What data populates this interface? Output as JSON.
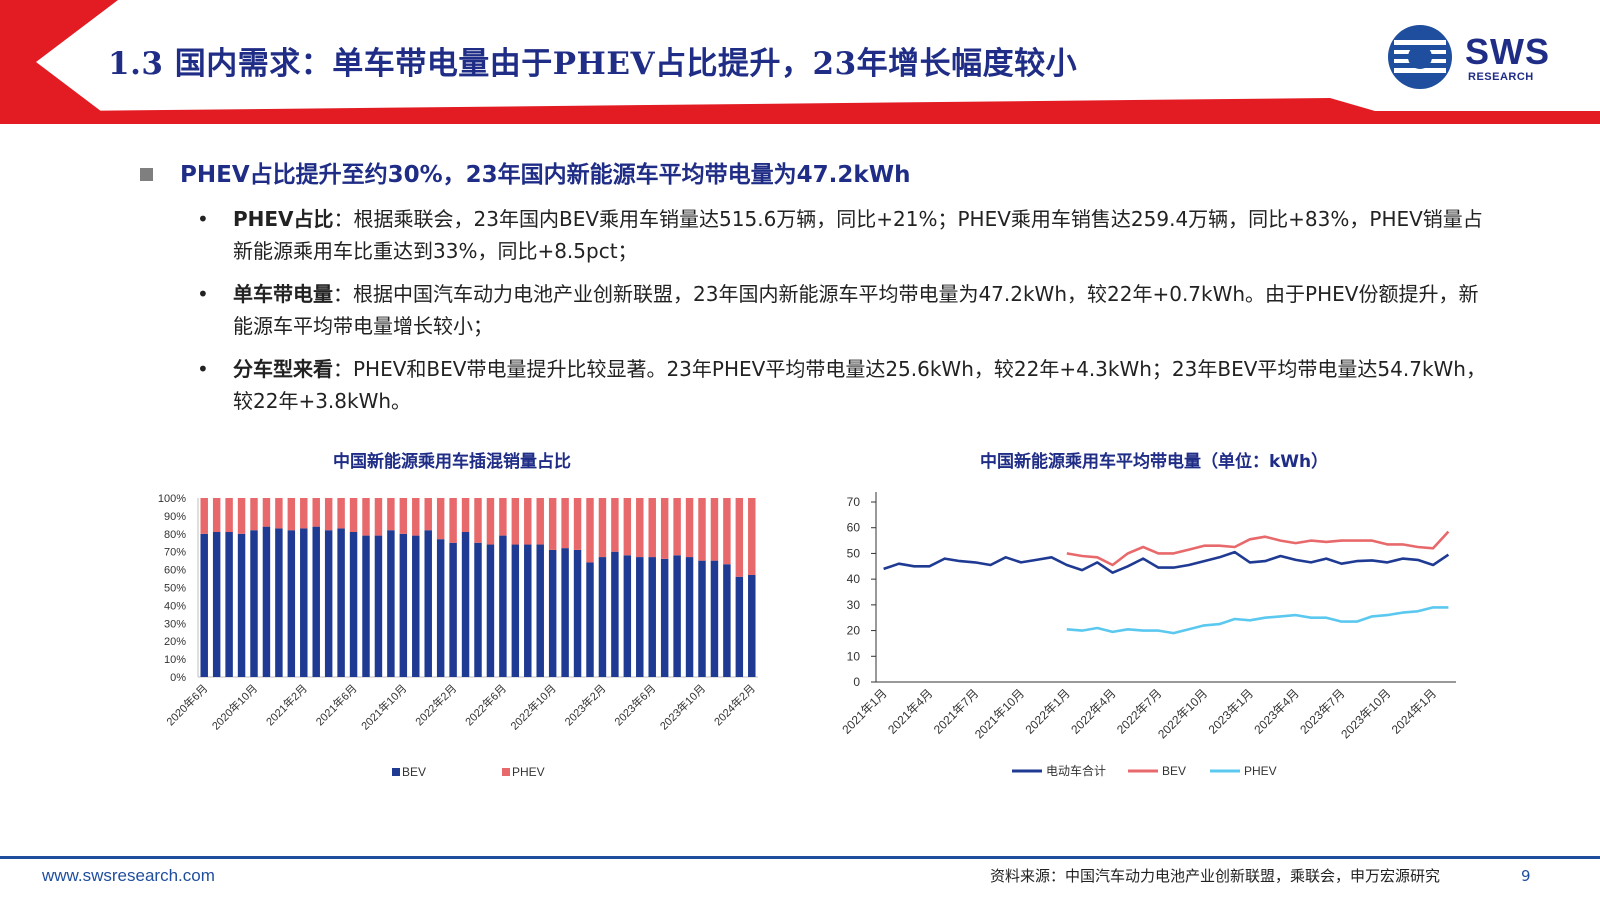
{
  "header": {
    "title": "1.3 国内需求：单车带电量由于PHEV占比提升，23年增长幅度较小",
    "logo_text": "SWS",
    "logo_sub": "RESEARCH"
  },
  "colors": {
    "navy": "#1f2d86",
    "red": "#e31b23",
    "bev_bar": "#1f3a93",
    "phev_bar": "#e8696b",
    "total_line": "#1f3a93",
    "bev_line": "#e8696b",
    "phev_line": "#5bc8f0"
  },
  "headline": "PHEV占比提升至约30%，23年国内新能源车平均带电量为47.2kWh",
  "bullets": [
    {
      "label": "PHEV占比",
      "text": "：根据乘联会，23年国内BEV乘用车销量达515.6万辆，同比+21%；PHEV乘用车销售达259.4万辆，同比+83%，PHEV销量占新能源乘用车比重达到33%，同比+8.5pct；"
    },
    {
      "label": "单车带电量",
      "text": "：根据中国汽车动力电池产业创新联盟，23年国内新能源车平均带电量为47.2kWh，较22年+0.7kWh。由于PHEV份额提升，新能源车平均带电量增长较小；"
    },
    {
      "label": "分车型来看",
      "text": "：PHEV和BEV带电量提升比较显著。23年PHEV平均带电量达25.6kWh，较22年+4.3kWh；23年BEV平均带电量达54.7kWh，较22年+3.8kWh。"
    }
  ],
  "footer": {
    "url": "www.swsresearch.com",
    "source": "资料来源：中国汽车动力电池产业创新联盟，乘联会，申万宏源研究",
    "page": "9"
  },
  "chart_data": [
    {
      "type": "bar",
      "stacked": true,
      "title": "中国新能源乘用车插混销量占比",
      "x_tick_labels": [
        "2020年6月",
        "2020年10月",
        "2021年2月",
        "2021年6月",
        "2021年10月",
        "2022年2月",
        "2022年6月",
        "2022年10月",
        "2023年2月",
        "2023年6月",
        "2023年10月",
        "2024年2月"
      ],
      "y_tick_labels": [
        "0%",
        "10%",
        "20%",
        "30%",
        "40%",
        "50%",
        "60%",
        "70%",
        "80%",
        "90%",
        "100%"
      ],
      "ylim": [
        0,
        100
      ],
      "categories": [
        "2020-06",
        "2020-07",
        "2020-08",
        "2020-09",
        "2020-10",
        "2020-11",
        "2020-12",
        "2021-01",
        "2021-02",
        "2021-03",
        "2021-04",
        "2021-05",
        "2021-06",
        "2021-07",
        "2021-08",
        "2021-09",
        "2021-10",
        "2021-11",
        "2021-12",
        "2022-01",
        "2022-02",
        "2022-03",
        "2022-04",
        "2022-05",
        "2022-06",
        "2022-07",
        "2022-08",
        "2022-09",
        "2022-10",
        "2022-11",
        "2022-12",
        "2023-01",
        "2023-02",
        "2023-03",
        "2023-04",
        "2023-05",
        "2023-06",
        "2023-07",
        "2023-08",
        "2023-09",
        "2023-10",
        "2023-11",
        "2023-12",
        "2024-01",
        "2024-02"
      ],
      "series": [
        {
          "name": "BEV",
          "values": [
            80,
            81,
            81,
            80,
            82,
            84,
            83,
            82,
            83,
            84,
            82,
            83,
            81,
            79,
            79,
            82,
            80,
            79,
            82,
            77,
            75,
            81,
            75,
            74,
            79,
            74,
            74,
            74,
            71,
            72,
            71,
            64,
            67,
            70,
            68,
            67,
            67,
            66,
            68,
            67,
            65,
            65,
            63,
            56,
            57
          ]
        },
        {
          "name": "PHEV",
          "values": [
            20,
            19,
            19,
            20,
            18,
            16,
            17,
            18,
            17,
            16,
            18,
            17,
            19,
            21,
            21,
            18,
            20,
            21,
            18,
            23,
            25,
            19,
            25,
            26,
            21,
            26,
            26,
            26,
            29,
            28,
            29,
            36,
            33,
            30,
            32,
            33,
            33,
            34,
            32,
            33,
            35,
            35,
            37,
            44,
            43
          ]
        }
      ],
      "legend": "bottom"
    },
    {
      "type": "line",
      "title": "中国新能源乘用车平均带电量（单位：kWh）",
      "x_tick_labels": [
        "2021年1月",
        "2021年4月",
        "2021年7月",
        "2021年10月",
        "2022年1月",
        "2022年4月",
        "2022年7月",
        "2022年10月",
        "2023年1月",
        "2023年4月",
        "2023年7月",
        "2023年10月",
        "2024年1月"
      ],
      "y_tick_labels": [
        "0",
        "10",
        "20",
        "30",
        "40",
        "50",
        "60",
        "70"
      ],
      "ylim": [
        0,
        70
      ],
      "x": [
        "2021-01",
        "2021-02",
        "2021-03",
        "2021-04",
        "2021-05",
        "2021-06",
        "2021-07",
        "2021-08",
        "2021-09",
        "2021-10",
        "2021-11",
        "2021-12",
        "2022-01",
        "2022-02",
        "2022-03",
        "2022-04",
        "2022-05",
        "2022-06",
        "2022-07",
        "2022-08",
        "2022-09",
        "2022-10",
        "2022-11",
        "2022-12",
        "2023-01",
        "2023-02",
        "2023-03",
        "2023-04",
        "2023-05",
        "2023-06",
        "2023-07",
        "2023-08",
        "2023-09",
        "2023-10",
        "2023-11",
        "2023-12",
        "2024-01",
        "2024-02"
      ],
      "series": [
        {
          "name": "电动车合计",
          "values": [
            44,
            46,
            45,
            45,
            48,
            47,
            46.5,
            45.5,
            48.5,
            46.5,
            47.5,
            48.5,
            45.5,
            43.5,
            46.5,
            42.5,
            45,
            48,
            44.5,
            44.5,
            45.5,
            47,
            48.5,
            50.5,
            46.5,
            47,
            49,
            47.5,
            46.5,
            48,
            46,
            47,
            47.3,
            46.5,
            48,
            47.5,
            45.5,
            49.5
          ]
        },
        {
          "name": "BEV",
          "values": [
            null,
            null,
            null,
            null,
            null,
            null,
            null,
            null,
            null,
            null,
            null,
            null,
            50,
            49,
            48.5,
            45.5,
            50,
            52.5,
            50,
            50,
            51.5,
            53,
            53,
            52.5,
            55.5,
            56.5,
            55,
            54,
            55,
            54.5,
            55,
            55,
            55,
            53.5,
            53.5,
            52.5,
            52,
            58.5
          ]
        },
        {
          "name": "PHEV",
          "values": [
            null,
            null,
            null,
            null,
            null,
            null,
            null,
            null,
            null,
            null,
            null,
            null,
            20.5,
            20,
            21,
            19.5,
            20.5,
            20,
            20,
            19,
            20.5,
            22,
            22.5,
            24.5,
            24,
            25,
            25.5,
            26,
            25,
            25,
            23.5,
            23.5,
            25.5,
            26,
            27,
            27.5,
            29,
            29
          ]
        }
      ],
      "legend": "bottom"
    }
  ]
}
